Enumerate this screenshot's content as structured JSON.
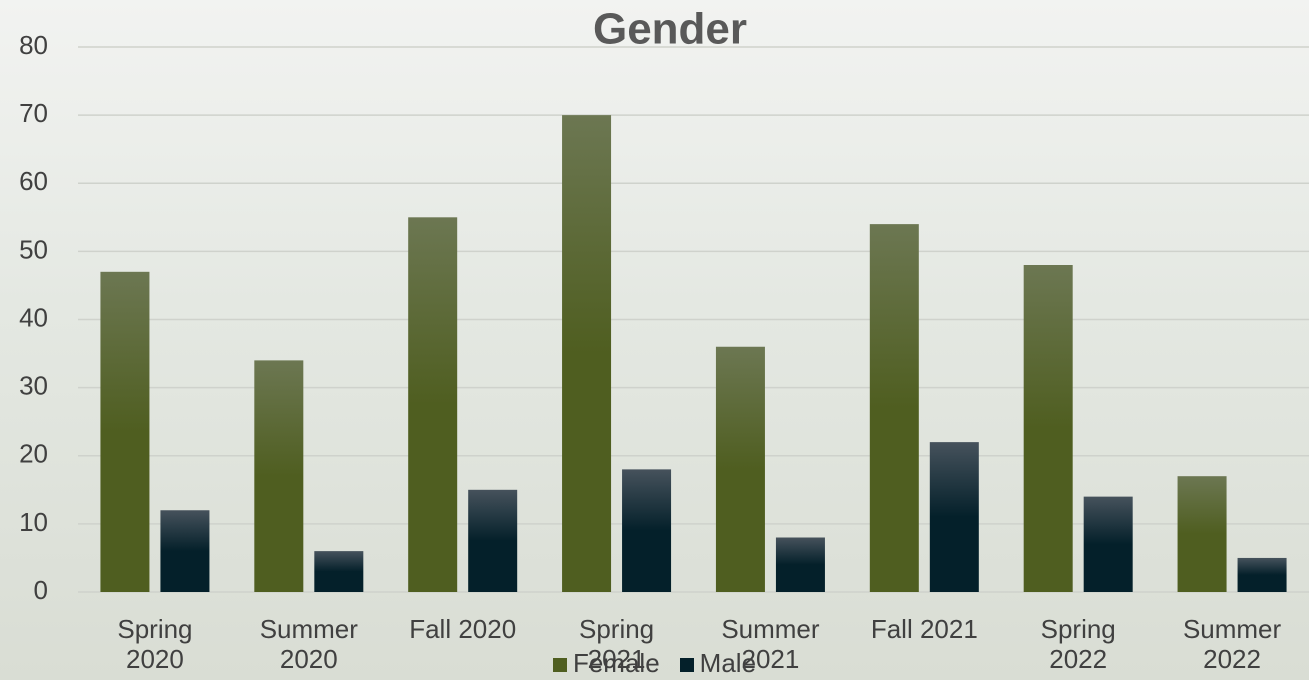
{
  "chart_data": {
    "type": "bar",
    "title": "Gender",
    "categories": [
      "Spring 2020",
      "Summer 2020",
      "Fall 2020",
      "Spring 2021",
      "Summer 2021",
      "Fall 2021",
      "Spring 2022",
      "Summer 2022"
    ],
    "series": [
      {
        "name": "Female",
        "color": "#4f5e20",
        "values": [
          47,
          34,
          55,
          70,
          36,
          54,
          48,
          17
        ]
      },
      {
        "name": "Male",
        "color": "#04202a",
        "values": [
          12,
          6,
          15,
          18,
          8,
          22,
          14,
          5
        ]
      }
    ],
    "ylim": [
      0,
      80
    ],
    "yticks": [
      0,
      10,
      20,
      30,
      40,
      50,
      60,
      70,
      80
    ],
    "grid": true,
    "legend": "bottom"
  }
}
